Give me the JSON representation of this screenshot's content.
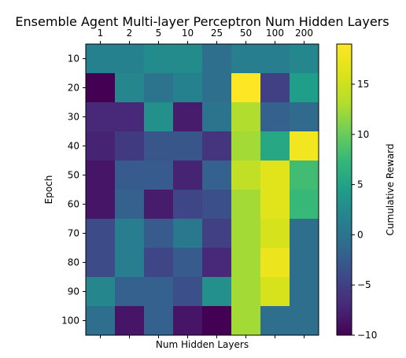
{
  "chart_data": {
    "type": "heatmap",
    "title": "Ensemble Agent Multi-layer Perceptron Num Hidden Layers",
    "xlabel": "Num Hidden Layers",
    "ylabel": "Epoch",
    "x_categories": [
      "1",
      "2",
      "5",
      "10",
      "25",
      "50",
      "100",
      "200"
    ],
    "y_categories": [
      "10",
      "20",
      "30",
      "40",
      "50",
      "60",
      "70",
      "80",
      "90",
      "100"
    ],
    "values": [
      [
        1.5,
        1.5,
        2.5,
        2.5,
        -0.5,
        1,
        1,
        2
      ],
      [
        -10,
        2,
        0,
        1.5,
        -0.5,
        19,
        -5,
        4.5
      ],
      [
        -7,
        -7,
        3,
        -8,
        0,
        13,
        -2,
        -1
      ],
      [
        -7.5,
        -5.5,
        -3,
        -3,
        -6,
        12.5,
        5.5,
        18
      ],
      [
        -8.5,
        -2.5,
        -2.5,
        -7.5,
        -2,
        14,
        16.5,
        8
      ],
      [
        -8.5,
        -2,
        -8,
        -4.5,
        -3.5,
        12.5,
        16.5,
        7.5
      ],
      [
        -4,
        1,
        -2.5,
        0.5,
        -5,
        12.5,
        15.5,
        -0.5
      ],
      [
        -4,
        1,
        -4.5,
        -2.5,
        -7,
        12.5,
        17.5,
        -0.5
      ],
      [
        2,
        -2,
        -2,
        -3.5,
        3,
        12.5,
        15.5,
        -0.5
      ],
      [
        -0.5,
        -8.5,
        -2,
        -8.5,
        -10,
        12.5,
        -0.5,
        -0.5
      ]
    ],
    "colormap": "viridis",
    "colorbar": {
      "label": "Cumulative Reward",
      "range": [
        -10,
        19
      ],
      "ticks": [
        -10,
        -5,
        0,
        5,
        10,
        15
      ],
      "tick_labels": [
        "−10",
        "−5",
        "0",
        "5",
        "10",
        "15"
      ]
    },
    "x_axis_position": "top",
    "grid": false
  }
}
